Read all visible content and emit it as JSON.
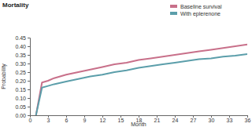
{
  "chart_data": {
    "type": "line",
    "title": "Mortality",
    "x_label": "Month",
    "y_label": "Probability",
    "x": [
      1,
      2,
      3,
      4,
      6,
      8,
      10,
      12,
      14,
      16,
      18,
      20,
      22,
      24,
      26,
      28,
      30,
      32,
      34,
      36
    ],
    "series": [
      {
        "name": "Baseline survival",
        "color": "#c8708a",
        "values": [
          0,
          0.19,
          0.2,
          0.215,
          0.235,
          0.25,
          0.265,
          0.28,
          0.295,
          0.305,
          0.32,
          0.33,
          0.34,
          0.35,
          0.36,
          0.37,
          0.38,
          0.39,
          0.4,
          0.41
        ]
      },
      {
        "name": "With eplerenone",
        "color": "#5b9eaa",
        "values": [
          0,
          0.16,
          0.17,
          0.18,
          0.195,
          0.21,
          0.225,
          0.235,
          0.25,
          0.26,
          0.275,
          0.285,
          0.295,
          0.305,
          0.315,
          0.325,
          0.33,
          0.34,
          0.345,
          0.355
        ]
      }
    ],
    "xlim": [
      0,
      36
    ],
    "xticks": [
      0,
      3,
      6,
      9,
      12,
      15,
      18,
      21,
      24,
      27,
      30,
      33,
      36
    ],
    "ylim": [
      0,
      0.45
    ],
    "yticks": [
      {
        "value": 0,
        "label": "0.00"
      },
      0.05,
      {
        "value": 0.1,
        "label": "0.10"
      },
      0.15,
      {
        "value": 0.2,
        "label": "0.20"
      },
      0.25,
      {
        "value": 0.3,
        "label": "0.30"
      },
      0.35,
      {
        "value": 0.4,
        "label": "0.40"
      },
      0.45
    ],
    "grid": false,
    "legend": "top-right"
  }
}
